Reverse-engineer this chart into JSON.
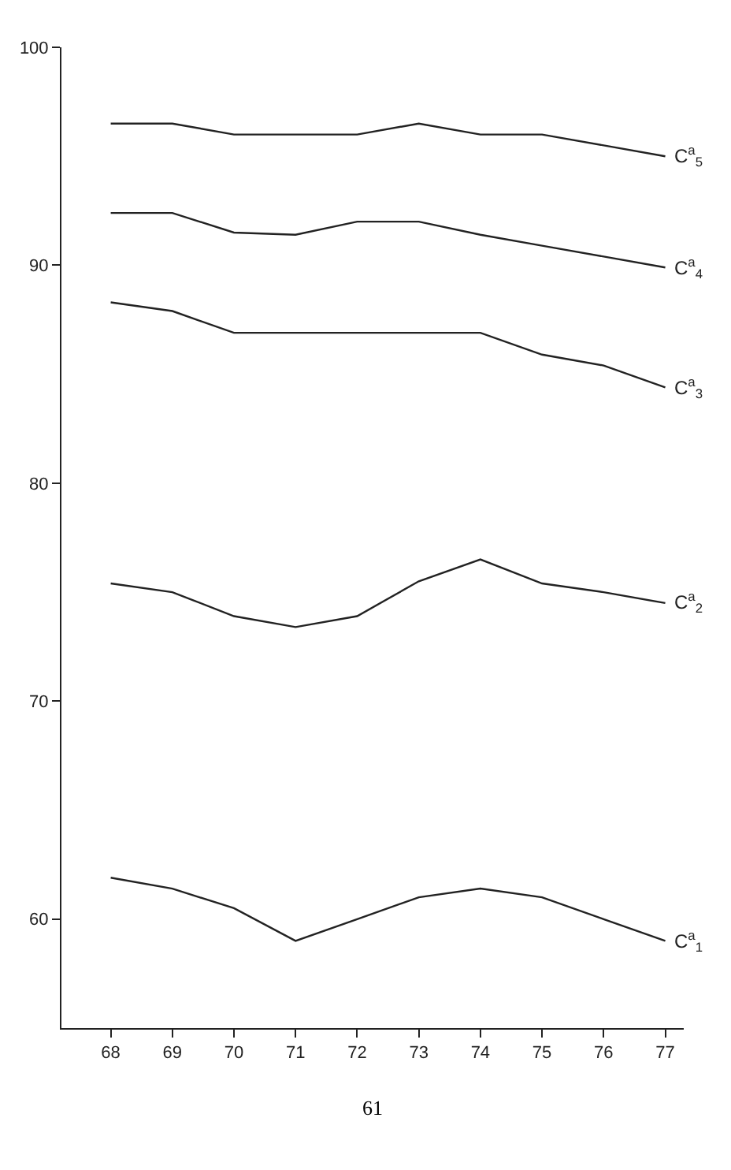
{
  "chart_data": {
    "type": "line",
    "x": [
      68,
      69,
      70,
      71,
      72,
      73,
      74,
      75,
      76,
      77
    ],
    "series": [
      {
        "name": "C$^{a}$$_{5}$",
        "color": "#222222",
        "values": [
          96.5,
          96.5,
          96,
          96,
          96,
          96.5,
          96,
          96,
          95.5,
          95
        ]
      },
      {
        "name": "C$^{a}$$_{4}$",
        "color": "#222222",
        "values": [
          92.4,
          92.4,
          91.5,
          91.4,
          92,
          92,
          91.4,
          90.9,
          90.4,
          89.9
        ]
      },
      {
        "name": "C$^{a}$$_{3}$",
        "color": "#222222",
        "values": [
          88.3,
          87.9,
          86.9,
          86.9,
          86.9,
          86.9,
          86.9,
          85.9,
          85.4,
          84.4
        ]
      },
      {
        "name": "C$^{a}$$_{2}$",
        "color": "#222222",
        "values": [
          75.4,
          75,
          73.9,
          73.4,
          73.9,
          75.5,
          76.5,
          75.4,
          75,
          74.5
        ]
      },
      {
        "name": "C$^{a}$$_{1}$",
        "color": "#222222",
        "values": [
          61.9,
          61.4,
          60.5,
          59,
          60,
          61,
          61.4,
          61,
          60,
          59
        ]
      }
    ],
    "xlim": [
      67.2,
      77.3
    ],
    "ylim": [
      55,
      100
    ],
    "xticks": [
      68,
      69,
      70,
      71,
      72,
      73,
      74,
      75,
      76,
      77
    ],
    "yticks": [
      60,
      70,
      80,
      90,
      100
    ],
    "legend": false,
    "marker": "none",
    "line_style": "solid",
    "annotations": [
      "61"
    ]
  }
}
